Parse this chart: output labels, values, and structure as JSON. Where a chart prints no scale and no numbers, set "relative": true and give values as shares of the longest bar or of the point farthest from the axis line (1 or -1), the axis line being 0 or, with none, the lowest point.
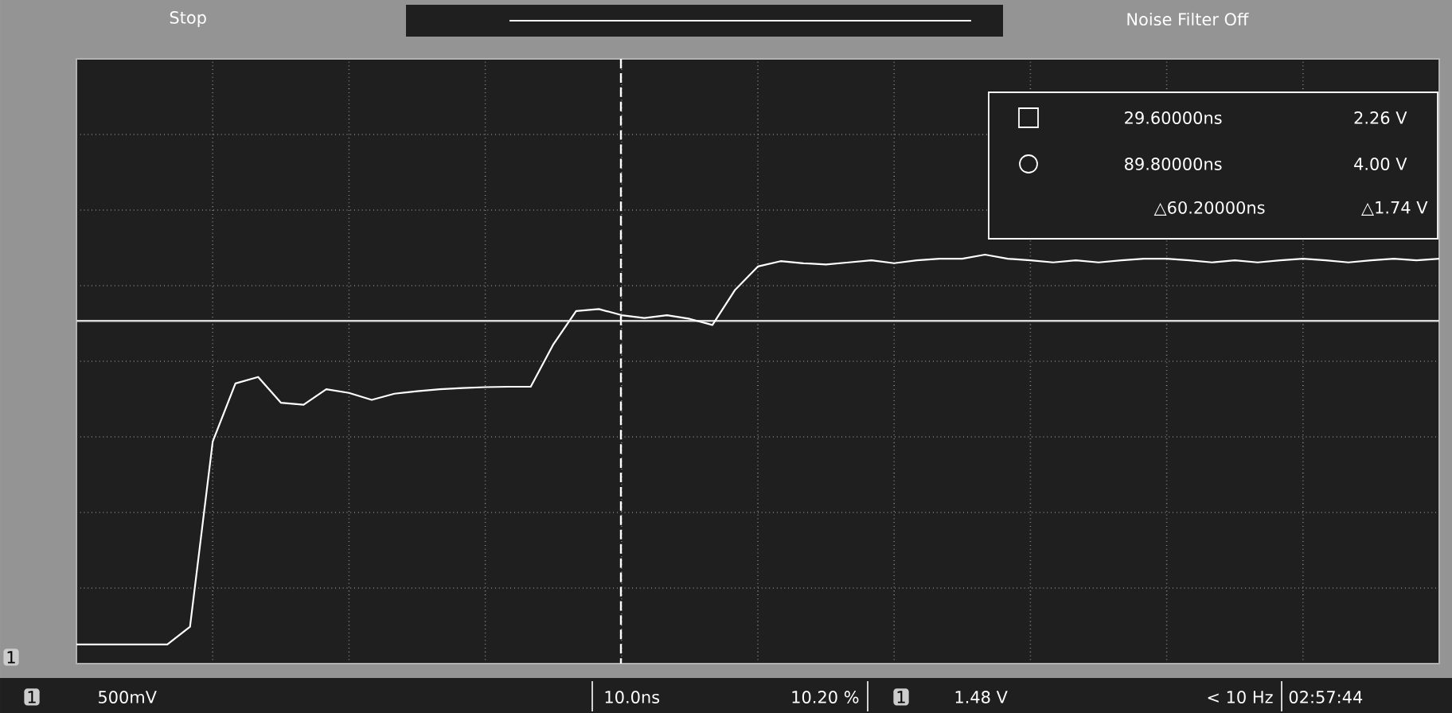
{
  "chart_data": {
    "type": "line",
    "relative": true,
    "categories": [
      null,
      null,
      null,
      null,
      null,
      null,
      null,
      null,
      null,
      null,
      null,
      null,
      null,
      null,
      null,
      null,
      null,
      null,
      null,
      null,
      null,
      null,
      null,
      null,
      null,
      null,
      null,
      null,
      null,
      null,
      null,
      null,
      null,
      null,
      null,
      null,
      null,
      null,
      null,
      null,
      null,
      null,
      null,
      null,
      null,
      null,
      null,
      null,
      null,
      null,
      null,
      null,
      null,
      null,
      null,
      null,
      null,
      null,
      null,
      null,
      null
    ],
    "values": [
      0.047,
      0.047,
      0.047,
      0.047,
      0.047,
      0.09,
      0.543,
      0.685,
      0.701,
      0.638,
      0.633,
      0.671,
      0.662,
      0.645,
      0.66,
      0.666,
      0.671,
      0.674,
      0.676,
      0.677,
      0.677,
      0.781,
      0.862,
      0.867,
      0.852,
      0.845,
      0.852,
      0.843,
      0.828,
      0.914,
      0.971,
      0.984,
      0.979,
      0.976,
      0.981,
      0.986,
      0.979,
      0.986,
      0.99,
      0.99,
      1,
      0.99,
      0.986,
      0.981,
      0.986,
      0.981,
      0.986,
      0.99,
      0.99,
      0.986,
      0.981,
      0.986,
      0.981,
      0.986,
      0.99,
      0.986,
      0.981,
      0.986,
      0.99,
      0.986,
      0.99
    ],
    "color": "#ffffff",
    "grid": true,
    "marker": "none",
    "line_style": "solid",
    "ref_lines": [
      {
        "axis": "y",
        "value": 0.838,
        "color": "#d8d8d8",
        "line_style": "solid"
      }
    ],
    "annotations": [
      "Stop",
      "Noise Filter Off",
      "29.60000ns",
      "2.26 V",
      "89.80000ns",
      "4.00 V",
      "△60.20000ns",
      "△1.74 V",
      "500mV",
      "10.0ns",
      "10.20 %",
      "1.48 V",
      "< 10 Hz",
      "02:57:44",
      "1",
      "1",
      "1"
    ]
  }
}
